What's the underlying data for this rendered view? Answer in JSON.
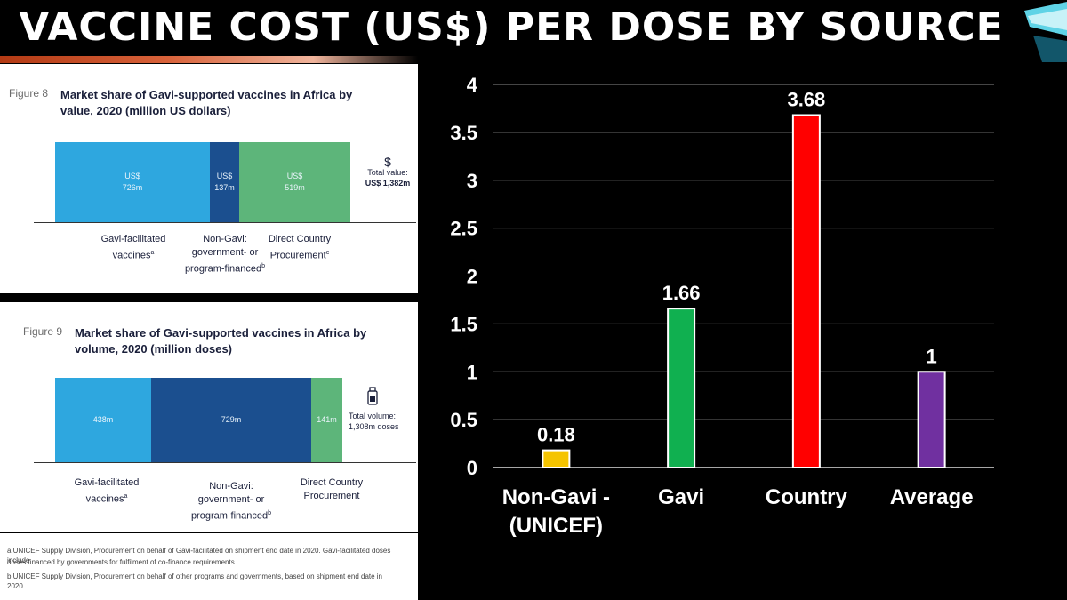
{
  "slide": {
    "title": "VACCINE COST (US$) PER DOSE BY SOURCE"
  },
  "fig8": {
    "number": "Figure 8",
    "title": "Market share of Gavi-supported vaccines in Africa by value, 2020 (million US dollars)",
    "segments": [
      {
        "currency": "US$",
        "amount": "726m",
        "color": "#2ea7df"
      },
      {
        "currency": "US$",
        "amount": "137m",
        "color": "#1b4f8f"
      },
      {
        "currency": "US$",
        "amount": "519m",
        "color": "#5db57a"
      }
    ],
    "labels": [
      {
        "line1": "Gavi-facilitated",
        "line2": "vaccines",
        "sup": "a"
      },
      {
        "line1": "Non-Gavi:",
        "line2": "government- or",
        "line3": "program-financed",
        "sup": "b"
      },
      {
        "line1": "Direct Country",
        "line2": "Procurement",
        "sup": "c"
      }
    ],
    "total": {
      "symbol": "$",
      "label": "Total value:",
      "value": "US$ 1,382m"
    }
  },
  "fig9": {
    "number": "Figure 9",
    "title": "Market share of Gavi-supported vaccines in Africa by volume, 2020 (million doses)",
    "segments": [
      {
        "amount": "438m",
        "color": "#2ea7df"
      },
      {
        "amount": "729m",
        "color": "#1b4f8f"
      },
      {
        "amount": "141m",
        "color": "#5db57a"
      }
    ],
    "labels": [
      {
        "line1": "Gavi-facilitated",
        "line2": "vaccines",
        "sup": "a"
      },
      {
        "line1": "Non-Gavi:",
        "line2": "government- or",
        "line3": "program-financed",
        "sup": "b"
      },
      {
        "line1": "Direct Country",
        "line2": "Procurement"
      }
    ],
    "total": {
      "label": "Total volume:",
      "value": "1,308m doses"
    }
  },
  "notes": {
    "a": "a UNICEF Supply Division, Procurement on behalf of Gavi-facilitated on shipment end date in 2020. Gavi-facilitated doses include",
    "a2": "doses financed by governments for fulfilment of co-finance requirements.",
    "b": "b UNICEF Supply Division, Procurement on behalf of other programs and governments, based on shipment end date in 2020"
  },
  "chart_data": {
    "type": "bar",
    "categories": [
      "Non-Gavi - (UNICEF)",
      "Gavi",
      "Country",
      "Average"
    ],
    "values": [
      0.18,
      1.66,
      3.68,
      1
    ],
    "data_labels": [
      "0.18",
      "1.66",
      "3.68",
      "1"
    ],
    "colors": [
      "#f5c400",
      "#10b050",
      "#ff0000",
      "#7030a0"
    ],
    "ylim": [
      0,
      4
    ],
    "yticks": [
      0,
      0.5,
      1,
      1.5,
      2,
      2.5,
      3,
      3.5,
      4
    ],
    "ytick_labels": [
      "0",
      "0.5",
      "1",
      "1.5",
      "2",
      "2.5",
      "3",
      "3.5",
      "4"
    ],
    "xtick_lines": [
      [
        "Non-Gavi -",
        "(UNICEF)"
      ],
      [
        "Gavi"
      ],
      [
        "Country"
      ],
      [
        "Average"
      ]
    ],
    "grid": true
  }
}
